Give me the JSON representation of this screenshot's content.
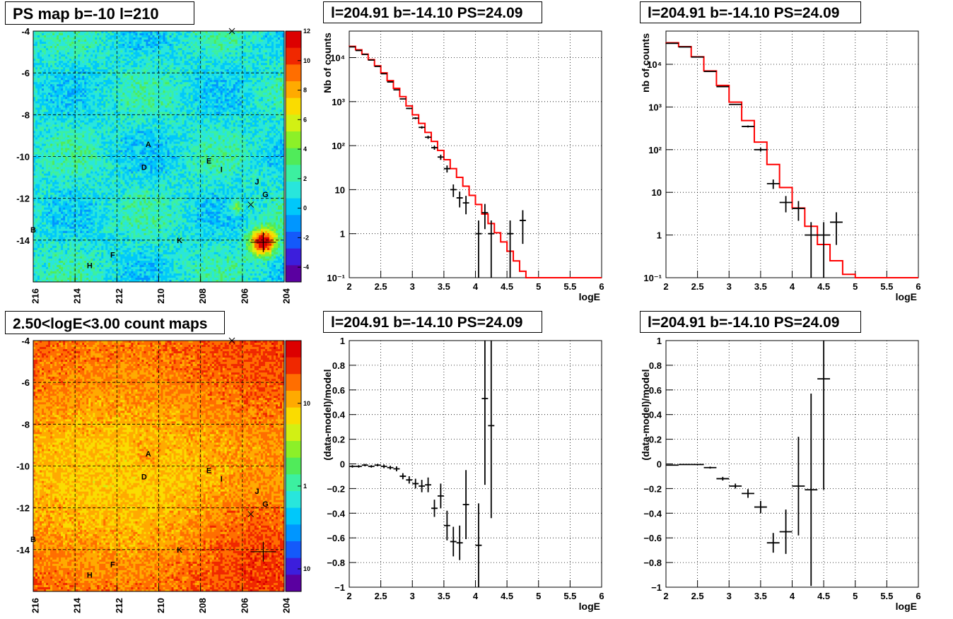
{
  "panels": {
    "map_top": {
      "title": "PS map b=-10 l=210",
      "colorbar_ticks": [
        "12",
        "10",
        "8",
        "6",
        "4",
        "2",
        "0",
        "-2",
        "-4"
      ]
    },
    "map_bottom": {
      "title": "2.50<logE<3.00 count maps",
      "colorbar_ticks": [
        "10",
        "1",
        "10⁻¹"
      ]
    },
    "map_axes": {
      "x_ticks": [
        "216",
        "214",
        "212",
        "210",
        "208",
        "206",
        "204"
      ],
      "y_ticks": [
        "-4",
        "-6",
        "-8",
        "-10",
        "-12",
        "-14"
      ],
      "source_labels": [
        "A",
        "B",
        "D",
        "E",
        "F",
        "G",
        "H",
        "I",
        "J",
        "K"
      ]
    },
    "spec1": {
      "title": "l=204.91 b=-14.10 PS=24.09"
    },
    "spec2": {
      "title": "l=204.91 b=-14.10 PS=24.09"
    },
    "res1": {
      "title": "l=204.91 b=-14.10 PS=24.09"
    },
    "res2": {
      "title": "l=204.91 b=-14.10 PS=24.09"
    }
  },
  "chart_data": [
    {
      "type": "heatmap",
      "title": "PS map b=-10 l=210",
      "xlabel": "",
      "ylabel": "",
      "x_ticks": [
        216,
        214,
        212,
        210,
        208,
        206,
        204
      ],
      "y_ticks": [
        -4,
        -6,
        -8,
        -10,
        -12,
        -14
      ],
      "xlim": [
        216,
        204
      ],
      "ylim": [
        -16,
        -4
      ],
      "zlim": [
        -5,
        12
      ],
      "colorbar_ticks": [
        12,
        10,
        8,
        6,
        4,
        2,
        0,
        -2,
        -4
      ],
      "hotspots": [
        {
          "l": 205.0,
          "b": -14.1,
          "value": 12
        },
        {
          "l": 206.3,
          "b": -12.4,
          "value": 4
        }
      ],
      "sources": [
        {
          "name": "A",
          "l": 210.5,
          "b": -9.4
        },
        {
          "name": "D",
          "l": 210.7,
          "b": -10.5
        },
        {
          "name": "E",
          "l": 207.6,
          "b": -10.2
        },
        {
          "name": "I",
          "l": 207.0,
          "b": -10.6
        },
        {
          "name": "J",
          "l": 205.3,
          "b": -11.2
        },
        {
          "name": "G",
          "l": 204.9,
          "b": -11.8
        },
        {
          "name": "B",
          "l": 216.0,
          "b": -13.5
        },
        {
          "name": "K",
          "l": 209.0,
          "b": -14.0
        },
        {
          "name": "F",
          "l": 212.2,
          "b": -14.7
        },
        {
          "name": "H",
          "l": 213.3,
          "b": -15.2
        }
      ],
      "markers": [
        {
          "l": 206.5,
          "b": -4.0
        },
        {
          "l": 205.6,
          "b": -12.3
        }
      ],
      "grid": true
    },
    {
      "type": "line",
      "title": "l=204.91 b=-14.10 PS=24.09",
      "xlabel": "logE",
      "ylabel": "Nb of counts",
      "xlim": [
        2,
        6
      ],
      "ylim": [
        0.1,
        40000
      ],
      "yscale": "log",
      "x_ticks": [
        2,
        2.5,
        3,
        3.5,
        4,
        4.5,
        5,
        5.5,
        6
      ],
      "y_ticks": [
        "10⁻¹",
        "1",
        "10",
        "10²",
        "10³",
        "10⁴"
      ],
      "bin_width": 0.1,
      "model_color": "#ff0000",
      "series": [
        {
          "role": "model",
          "x": [
            2.0,
            2.1,
            2.2,
            2.3,
            2.4,
            2.5,
            2.6,
            2.7,
            2.8,
            2.9,
            3.0,
            3.1,
            3.2,
            3.3,
            3.4,
            3.5,
            3.6,
            3.7,
            3.8,
            3.9,
            4.0,
            4.1,
            4.2,
            4.3,
            4.4,
            4.5,
            4.6,
            4.7,
            4.8,
            4.9,
            5.0,
            5.1,
            5.2,
            5.3,
            5.4,
            5.5,
            5.6,
            5.7,
            5.8,
            5.9
          ],
          "values": [
            18000,
            15000,
            12000,
            9000,
            6500,
            4500,
            3000,
            2000,
            1300,
            800,
            500,
            320,
            200,
            125,
            78,
            48,
            30,
            19,
            12,
            7.4,
            4.6,
            2.8,
            1.7,
            1.05,
            0.65,
            0.4,
            0.24,
            0.14,
            0.1,
            0.1,
            0.1,
            0.1,
            0.1,
            0.1,
            0.1,
            0.1,
            0.1,
            0.1,
            0.1,
            0.1
          ]
        },
        {
          "role": "data",
          "x": [
            2.0,
            2.1,
            2.2,
            2.3,
            2.4,
            2.5,
            2.6,
            2.7,
            2.8,
            2.9,
            3.0,
            3.1,
            3.2,
            3.3,
            3.4,
            3.5,
            3.6,
            3.7,
            3.8,
            3.9,
            4.0,
            4.1,
            4.2,
            4.3,
            4.4,
            4.5,
            4.6,
            4.7
          ],
          "values": [
            17500,
            14500,
            11800,
            8800,
            6300,
            4300,
            2800,
            1850,
            1150,
            700,
            420,
            260,
            155,
            90,
            55,
            30,
            10,
            6.5,
            5,
            0,
            1,
            3,
            1,
            0,
            0,
            1,
            0,
            2
          ]
        }
      ],
      "grid": true
    },
    {
      "type": "line",
      "title": "l=204.91 b=-14.10 PS=24.09",
      "xlabel": "logE",
      "ylabel": "nb of counts",
      "xlim": [
        2,
        6
      ],
      "ylim": [
        0.1,
        60000
      ],
      "yscale": "log",
      "x_ticks": [
        2,
        2.5,
        3,
        3.5,
        4,
        4.5,
        5,
        5.5,
        6
      ],
      "y_ticks": [
        "10⁻¹",
        "1",
        "10",
        "10²",
        "10³",
        "10⁴"
      ],
      "bin_width": 0.2,
      "model_color": "#ff0000",
      "series": [
        {
          "role": "model",
          "x": [
            2.0,
            2.2,
            2.4,
            2.6,
            2.8,
            3.0,
            3.2,
            3.4,
            3.6,
            3.8,
            4.0,
            4.2,
            4.4,
            4.6,
            4.8,
            5.0,
            5.2,
            5.4,
            5.6,
            5.8
          ],
          "values": [
            32000,
            26000,
            15000,
            7000,
            3200,
            1300,
            480,
            150,
            45,
            13,
            4.3,
            1.6,
            0.6,
            0.25,
            0.12,
            0.1,
            0.1,
            0.1,
            0.1,
            0.1
          ]
        },
        {
          "role": "data",
          "x": [
            2.0,
            2.2,
            2.4,
            2.6,
            2.8,
            3.0,
            3.2,
            3.4,
            3.6,
            3.8,
            4.0,
            4.2,
            4.4,
            4.6
          ],
          "values": [
            31000,
            25500,
            14800,
            6800,
            3000,
            1150,
            350,
            100,
            16,
            5.8,
            4.2,
            1,
            1,
            2
          ]
        }
      ],
      "grid": true
    },
    {
      "type": "scatter",
      "title": "l=204.91 b=-14.10 PS=24.09",
      "xlabel": "logE",
      "ylabel": "(data-model)/model",
      "xlim": [
        2,
        6
      ],
      "ylim": [
        -1,
        1
      ],
      "x_ticks": [
        2,
        2.5,
        3,
        3.5,
        4,
        4.5,
        5,
        5.5,
        6
      ],
      "y_ticks": [
        -1,
        -0.8,
        -0.6,
        -0.4,
        -0.2,
        0,
        0.2,
        0.4,
        0.6,
        0.8,
        1
      ],
      "bin_width": 0.1,
      "series": [
        {
          "name": "",
          "x": [
            2.05,
            2.15,
            2.25,
            2.35,
            2.45,
            2.55,
            2.65,
            2.75,
            2.85,
            2.95,
            3.05,
            3.15,
            3.25,
            3.35,
            3.45,
            3.55,
            3.65,
            3.75,
            3.85,
            4.05,
            4.15,
            4.25
          ],
          "values": [
            -0.02,
            -0.02,
            -0.01,
            -0.02,
            -0.01,
            -0.02,
            -0.03,
            -0.04,
            -0.1,
            -0.13,
            -0.16,
            -0.18,
            -0.17,
            -0.36,
            -0.26,
            -0.5,
            -0.63,
            -0.64,
            -0.33,
            -0.66,
            0.53,
            0.31
          ],
          "errors": [
            0.01,
            0.01,
            0.01,
            0.01,
            0.01,
            0.015,
            0.015,
            0.02,
            0.025,
            0.03,
            0.04,
            0.05,
            0.06,
            0.07,
            0.1,
            0.12,
            0.12,
            0.14,
            0.28,
            0.34,
            0.7,
            0.75
          ]
        }
      ],
      "grid": true
    },
    {
      "type": "scatter",
      "title": "l=204.91 b=-14.10 PS=24.09",
      "xlabel": "logE",
      "ylabel": "(data-model)/model",
      "xlim": [
        2,
        6
      ],
      "ylim": [
        -1,
        1
      ],
      "x_ticks": [
        2,
        2.5,
        3,
        3.5,
        4,
        4.5,
        5,
        5.5,
        6
      ],
      "y_ticks": [
        -1,
        -0.8,
        -0.6,
        -0.4,
        -0.2,
        0,
        0.2,
        0.4,
        0.6,
        0.8,
        1
      ],
      "bin_width": 0.2,
      "series": [
        {
          "name": "",
          "x": [
            2.1,
            2.3,
            2.5,
            2.7,
            2.9,
            3.1,
            3.3,
            3.5,
            3.7,
            3.9,
            4.1,
            4.3,
            4.5
          ],
          "values": [
            -0.01,
            -0.005,
            -0.005,
            -0.03,
            -0.12,
            -0.18,
            -0.24,
            -0.35,
            -0.64,
            -0.55,
            -0.18,
            -0.21,
            0.69
          ],
          "errors": [
            0.003,
            0.004,
            0.005,
            0.008,
            0.015,
            0.02,
            0.035,
            0.05,
            0.08,
            0.18,
            0.4,
            0.78,
            0.9
          ]
        }
      ],
      "grid": true
    }
  ]
}
